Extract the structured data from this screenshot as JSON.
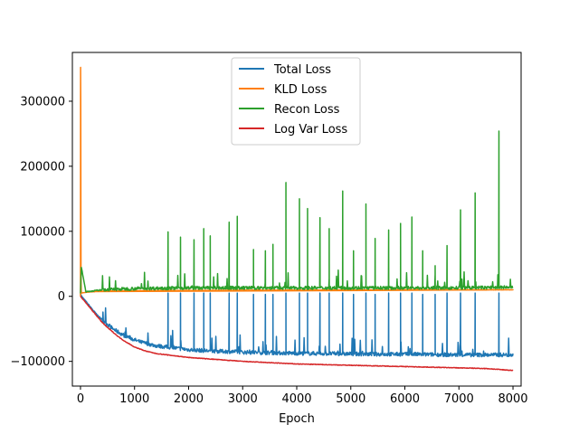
{
  "chart_data": {
    "type": "line",
    "title": "",
    "xlabel": "Epoch",
    "ylabel": "",
    "xlim": [
      -150,
      8150
    ],
    "ylim": [
      -138000,
      375000
    ],
    "xticks": [
      0,
      1000,
      2000,
      3000,
      4000,
      5000,
      6000,
      7000,
      8000
    ],
    "xtick_labels": [
      "0",
      "1000",
      "2000",
      "3000",
      "4000",
      "5000",
      "6000",
      "7000",
      "8000"
    ],
    "yticks": [
      -100000,
      0,
      100000,
      200000,
      300000
    ],
    "ytick_labels": [
      "−100000",
      "0",
      "100000",
      "200000",
      "300000"
    ],
    "grid": false,
    "legend_position": "upper-center",
    "series": [
      {
        "name": "Total Loss",
        "color": "#1f77b4",
        "x": [
          0,
          20,
          100,
          200,
          300,
          400,
          500,
          600,
          700,
          800,
          900,
          1000,
          1100,
          1200,
          1300,
          1400,
          1500,
          1600,
          1700,
          1800,
          1900,
          2000,
          2200,
          2400,
          2600,
          2800,
          3000,
          3300,
          3600,
          4000,
          4500,
          5000,
          5500,
          6000,
          6500,
          7000,
          7500,
          8000
        ],
        "values": [
          5000,
          0,
          -8000,
          -18000,
          -28000,
          -36000,
          -43000,
          -50000,
          -55000,
          -60000,
          -63000,
          -67000,
          -70000,
          -72000,
          -74000,
          -76000,
          -77000,
          -78000,
          -79000,
          -80000,
          -81000,
          -82000,
          -83000,
          -84000,
          -84500,
          -85000,
          -86000,
          -86500,
          -87000,
          -87500,
          -88000,
          -88500,
          -89000,
          -89000,
          -89500,
          -90000,
          -90000,
          -90000
        ],
        "spikes": [
          {
            "x": 1620,
            "y": 5000
          },
          {
            "x": 1850,
            "y": 5000
          },
          {
            "x": 2100,
            "y": 5000
          },
          {
            "x": 2280,
            "y": 5000
          },
          {
            "x": 2400,
            "y": 5000
          },
          {
            "x": 2750,
            "y": 5000
          },
          {
            "x": 2900,
            "y": 5000
          },
          {
            "x": 3200,
            "y": 3000
          },
          {
            "x": 3420,
            "y": 3000
          },
          {
            "x": 3560,
            "y": 3000
          },
          {
            "x": 3800,
            "y": 5000
          },
          {
            "x": 4050,
            "y": 5000
          },
          {
            "x": 4200,
            "y": 5000
          },
          {
            "x": 4430,
            "y": 5000
          },
          {
            "x": 4600,
            "y": 5000
          },
          {
            "x": 4850,
            "y": 5000
          },
          {
            "x": 5050,
            "y": 3000
          },
          {
            "x": 5280,
            "y": 5000
          },
          {
            "x": 5450,
            "y": 3000
          },
          {
            "x": 5700,
            "y": 5000
          },
          {
            "x": 5920,
            "y": 5000
          },
          {
            "x": 6130,
            "y": 5000
          },
          {
            "x": 6330,
            "y": 3000
          },
          {
            "x": 6560,
            "y": 3000
          },
          {
            "x": 6780,
            "y": 5000
          },
          {
            "x": 7030,
            "y": 5000
          },
          {
            "x": 7300,
            "y": 5000
          },
          {
            "x": 7740,
            "y": 5000
          }
        ]
      },
      {
        "name": "KLD Loss",
        "color": "#ff7f0e",
        "x": [
          0,
          2,
          5,
          8,
          10,
          15,
          20,
          50,
          100,
          200,
          400,
          1000,
          2000,
          4000,
          6000,
          8000
        ],
        "values": [
          0,
          352000,
          300000,
          120000,
          30000,
          8000,
          5000,
          5500,
          6000,
          7000,
          8000,
          8500,
          9000,
          9500,
          10000,
          10000
        ],
        "spikes": []
      },
      {
        "name": "Recon Loss",
        "color": "#2ca02c",
        "x": [
          0,
          15,
          100,
          400,
          1000,
          2000,
          3000,
          4000,
          5000,
          6000,
          7000,
          8000
        ],
        "values": [
          5000,
          45000,
          7000,
          10000,
          12000,
          13000,
          13000,
          13000,
          13000,
          13000,
          13000,
          14000
        ],
        "spikes": [
          {
            "x": 1620,
            "y": 99000
          },
          {
            "x": 1850,
            "y": 91000
          },
          {
            "x": 2100,
            "y": 87000
          },
          {
            "x": 2280,
            "y": 104000
          },
          {
            "x": 2400,
            "y": 93000
          },
          {
            "x": 2750,
            "y": 114000
          },
          {
            "x": 2900,
            "y": 123000
          },
          {
            "x": 3200,
            "y": 72000
          },
          {
            "x": 3420,
            "y": 70000
          },
          {
            "x": 3560,
            "y": 80000
          },
          {
            "x": 3800,
            "y": 175000
          },
          {
            "x": 4050,
            "y": 150000
          },
          {
            "x": 4200,
            "y": 135000
          },
          {
            "x": 4430,
            "y": 121000
          },
          {
            "x": 4600,
            "y": 104000
          },
          {
            "x": 4850,
            "y": 162000
          },
          {
            "x": 5050,
            "y": 70000
          },
          {
            "x": 5280,
            "y": 142000
          },
          {
            "x": 5450,
            "y": 89000
          },
          {
            "x": 5700,
            "y": 102000
          },
          {
            "x": 5920,
            "y": 112000
          },
          {
            "x": 6130,
            "y": 122000
          },
          {
            "x": 6330,
            "y": 70000
          },
          {
            "x": 6560,
            "y": 47000
          },
          {
            "x": 6780,
            "y": 78000
          },
          {
            "x": 7030,
            "y": 133000
          },
          {
            "x": 7300,
            "y": 159000
          },
          {
            "x": 7740,
            "y": 254000
          }
        ]
      },
      {
        "name": "Log Var Loss",
        "color": "#d62728",
        "x": [
          0,
          100,
          200,
          300,
          400,
          500,
          600,
          700,
          800,
          900,
          1000,
          1200,
          1400,
          1600,
          1800,
          2000,
          2500,
          3000,
          3500,
          4000,
          4500,
          5000,
          5500,
          6000,
          6500,
          7000,
          7500,
          8000
        ],
        "values": [
          0,
          -10000,
          -20000,
          -30000,
          -40000,
          -48000,
          -55000,
          -62000,
          -68000,
          -73000,
          -78000,
          -84000,
          -88000,
          -90000,
          -92000,
          -94000,
          -97000,
          -100000,
          -102000,
          -104000,
          -105000,
          -106000,
          -107000,
          -108000,
          -109000,
          -110000,
          -111000,
          -114000
        ],
        "spikes": []
      }
    ]
  }
}
